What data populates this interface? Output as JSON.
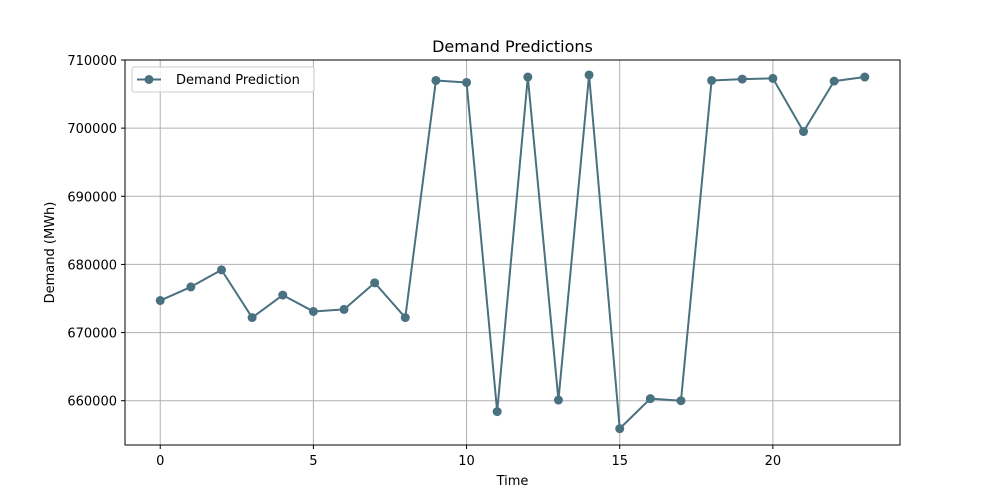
{
  "chart_data": {
    "type": "line",
    "title": "Demand Predictions",
    "xlabel": "Time",
    "ylabel": "Demand (MWh)",
    "xlim": [
      -1.15,
      24.15
    ],
    "ylim": [
      653500,
      710000
    ],
    "xticks": [
      0,
      5,
      10,
      15,
      20
    ],
    "yticks": [
      660000,
      670000,
      680000,
      690000,
      700000,
      710000
    ],
    "grid": true,
    "legend_position": "top-left",
    "colors": {
      "series": "#4a7180",
      "grid": "#b0b0b0",
      "axes": "#000000"
    },
    "series": [
      {
        "name": "Demand Prediction",
        "marker": "circle",
        "x": [
          0,
          1,
          2,
          3,
          4,
          5,
          6,
          7,
          8,
          9,
          10,
          11,
          12,
          13,
          14,
          15,
          16,
          17,
          18,
          19,
          20,
          21,
          22,
          23
        ],
        "y": [
          674700,
          676700,
          679200,
          672200,
          675500,
          673100,
          673400,
          677300,
          672200,
          707000,
          706700,
          658400,
          707500,
          660100,
          707800,
          655900,
          660300,
          660000,
          707000,
          707200,
          707300,
          699500,
          706900,
          707500
        ]
      }
    ]
  }
}
